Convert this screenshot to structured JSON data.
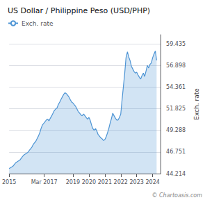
{
  "chart_data": {
    "type": "area",
    "title": "US Dollar / Philippine Peso (USD/PHP)",
    "y_label": "Exch. rate",
    "annotations": [
      "© Chartoasis.com"
    ],
    "legend": "upper left",
    "grid": "y",
    "xlim": [
      2015.0,
      2024.5
    ],
    "xticks": [
      2015.0,
      {
        "value": 2017.2,
        "label": "Mar 2017"
      },
      2019.0,
      2020.0,
      2021.0,
      2022.0,
      2023.0,
      2024.0
    ],
    "ylim": [
      44.214,
      60.5
    ],
    "yticks": [
      44.214,
      46.751,
      49.288,
      51.825,
      54.361,
      56.898,
      59.435
    ],
    "x": [
      2015.0,
      2015.08,
      2015.17,
      2015.25,
      2015.33,
      2015.42,
      2015.5,
      2015.58,
      2015.67,
      2015.75,
      2015.83,
      2015.92,
      2016.0,
      2016.08,
      2016.17,
      2016.25,
      2016.33,
      2016.42,
      2016.5,
      2016.58,
      2016.67,
      2016.75,
      2016.83,
      2016.92,
      2017.0,
      2017.08,
      2017.17,
      2017.25,
      2017.33,
      2017.42,
      2017.5,
      2017.58,
      2017.67,
      2017.75,
      2017.83,
      2017.92,
      2018.0,
      2018.08,
      2018.17,
      2018.25,
      2018.33,
      2018.42,
      2018.5,
      2018.58,
      2018.67,
      2018.75,
      2018.83,
      2018.92,
      2019.0,
      2019.08,
      2019.17,
      2019.25,
      2019.33,
      2019.42,
      2019.5,
      2019.58,
      2019.67,
      2019.75,
      2019.83,
      2019.92,
      2020.0,
      2020.08,
      2020.17,
      2020.25,
      2020.33,
      2020.42,
      2020.5,
      2020.58,
      2020.67,
      2020.75,
      2020.83,
      2020.92,
      2021.0,
      2021.08,
      2021.17,
      2021.25,
      2021.33,
      2021.42,
      2021.5,
      2021.58,
      2021.67,
      2021.75,
      2021.83,
      2021.92,
      2022.0,
      2022.08,
      2022.17,
      2022.25,
      2022.33,
      2022.42,
      2022.5,
      2022.58,
      2022.67,
      2022.75,
      2022.83,
      2022.92,
      2023.0,
      2023.08,
      2023.17,
      2023.25,
      2023.33,
      2023.42,
      2023.5,
      2023.58,
      2023.67,
      2023.75,
      2023.83,
      2023.92,
      2024.0,
      2024.08,
      2024.17,
      2024.25
    ],
    "series": [
      {
        "name": "Exch. rate",
        "color": "#4d94d4",
        "values": [
          44.8,
          44.9,
          45.0,
          45.1,
          45.3,
          45.5,
          45.6,
          45.7,
          45.8,
          46.0,
          46.2,
          46.4,
          46.5,
          46.6,
          46.7,
          46.9,
          47.1,
          47.3,
          47.6,
          47.8,
          48.0,
          48.3,
          48.6,
          49.0,
          49.5,
          49.9,
          50.1,
          50.3,
          50.5,
          50.6,
          50.4,
          50.7,
          51.0,
          51.3,
          51.6,
          51.8,
          51.9,
          52.3,
          52.6,
          52.9,
          53.2,
          53.5,
          53.7,
          53.6,
          53.4,
          53.2,
          52.9,
          52.6,
          52.5,
          52.3,
          52.1,
          51.8,
          51.5,
          51.3,
          51.1,
          51.0,
          51.2,
          51.0,
          50.8,
          50.6,
          50.8,
          50.5,
          49.9,
          49.5,
          49.3,
          49.5,
          49.2,
          48.8,
          48.6,
          48.4,
          48.3,
          48.1,
          48.2,
          48.5,
          49.0,
          49.5,
          50.1,
          50.7,
          51.3,
          51.0,
          50.7,
          50.5,
          50.5,
          50.8,
          51.2,
          52.8,
          54.5,
          56.0,
          57.8,
          58.5,
          57.9,
          57.5,
          56.8,
          56.5,
          56.2,
          56.0,
          56.1,
          55.8,
          55.5,
          55.3,
          55.7,
          56.0,
          55.6,
          56.2,
          56.9,
          56.6,
          57.0,
          57.2,
          57.8,
          58.2,
          58.6,
          57.5
        ]
      }
    ]
  }
}
